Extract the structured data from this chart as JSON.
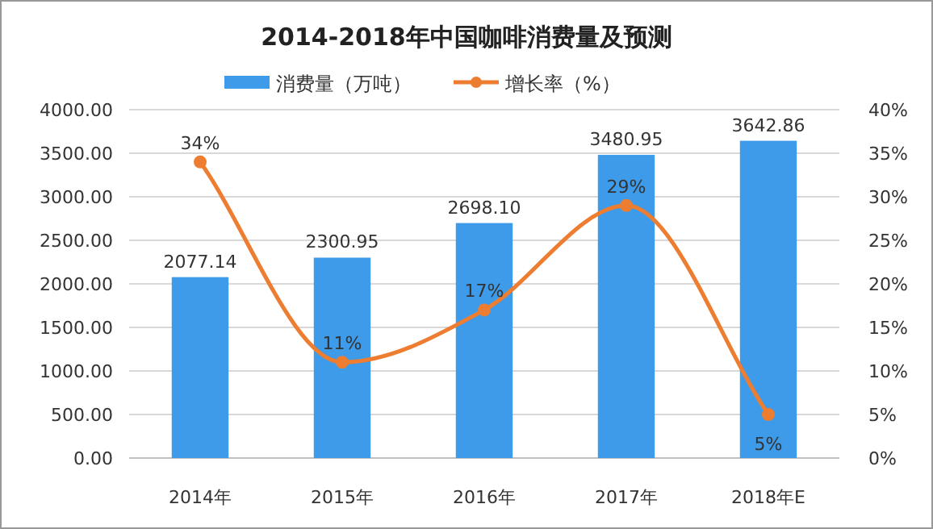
{
  "chart_data": {
    "type": "bar",
    "title": "2014-2018年中国咖啡消费量及预测",
    "categories": [
      "2014年",
      "2015年",
      "2016年",
      "2017年",
      "2018年E"
    ],
    "series": [
      {
        "name": "消费量（万吨）",
        "color": "#3d9be9",
        "values": [
          2077.14,
          2300.95,
          2698.1,
          3480.95,
          3642.86
        ],
        "value_labels": [
          "2077.14",
          "2300.95",
          "2698.10",
          "3480.95",
          "3642.86"
        ]
      },
      {
        "name": "增长率（%）",
        "type": "line",
        "axis": "y2",
        "color": "#ed7d31",
        "values": [
          34,
          11,
          17,
          29,
          5
        ],
        "value_labels": [
          "34%",
          "11%",
          "17%",
          "29%",
          "5%"
        ]
      }
    ],
    "ylim": [
      0,
      4000
    ],
    "yticks": [
      {
        "value": 0,
        "label": "0.00"
      },
      {
        "value": 500,
        "label": "500.00"
      },
      {
        "value": 1000,
        "label": "1000.00"
      },
      {
        "value": 1500,
        "label": "1500.00"
      },
      {
        "value": 2000,
        "label": "2000.00"
      },
      {
        "value": 2500,
        "label": "2500.00"
      },
      {
        "value": 3000,
        "label": "3000.00"
      },
      {
        "value": 3500,
        "label": "3500.00"
      },
      {
        "value": 4000,
        "label": "4000.00"
      }
    ],
    "y2lim": [
      0,
      40
    ],
    "y2ticks": [
      {
        "value": 0,
        "label": "0%"
      },
      {
        "value": 5,
        "label": "5%"
      },
      {
        "value": 10,
        "label": "10%"
      },
      {
        "value": 15,
        "label": "15%"
      },
      {
        "value": 20,
        "label": "20%"
      },
      {
        "value": 25,
        "label": "25%"
      },
      {
        "value": 30,
        "label": "30%"
      },
      {
        "value": 35,
        "label": "35%"
      },
      {
        "value": 40,
        "label": "40%"
      }
    ],
    "grid": "y",
    "legend": "top",
    "marker": "circle",
    "line_style": "solid"
  }
}
